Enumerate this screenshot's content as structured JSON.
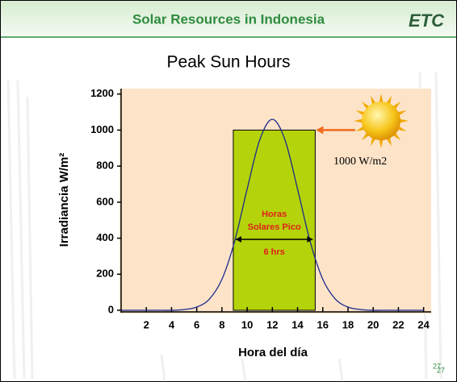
{
  "header": {
    "title": "Solar Resources in Indonesia",
    "logo": "ETC"
  },
  "chart_data": {
    "type": "line",
    "title": "Peak Sun Hours",
    "x_label": "Hora del día",
    "y_label": "Irradiancia W/m²",
    "x": [
      0,
      1,
      2,
      3,
      4,
      5,
      6,
      7,
      8,
      9,
      10,
      11,
      12,
      13,
      14,
      15,
      16,
      17,
      18,
      19,
      20,
      21,
      22,
      23,
      24
    ],
    "series": [
      {
        "color": "#1c2a8c",
        "values": [
          0,
          0,
          0,
          0,
          0,
          4,
          18,
          62,
          172,
          381,
          673,
          946,
          1060,
          946,
          673,
          381,
          172,
          62,
          18,
          4,
          0,
          0,
          0,
          0,
          0
        ]
      }
    ],
    "peak_block": {
      "x_start": 8.9,
      "x_end": 15.4,
      "value": 1000,
      "color": "#b5d30a"
    },
    "xlim": [
      0,
      24.6
    ],
    "ylim": [
      0,
      1230
    ],
    "xticks": [
      2,
      4,
      6,
      8,
      10,
      12,
      14,
      16,
      18,
      20,
      22,
      24
    ],
    "yticks": [
      0,
      200,
      400,
      600,
      800,
      1000,
      1200
    ],
    "plot_color": "#fde3c8",
    "annotations": {
      "block_label_1": "Horas",
      "block_label_2": "Solares Pico",
      "block_duration": "6 hrs",
      "sun_label": "1000 W/m2"
    }
  },
  "footer": {
    "page_numbers": [
      "27",
      "27"
    ]
  }
}
